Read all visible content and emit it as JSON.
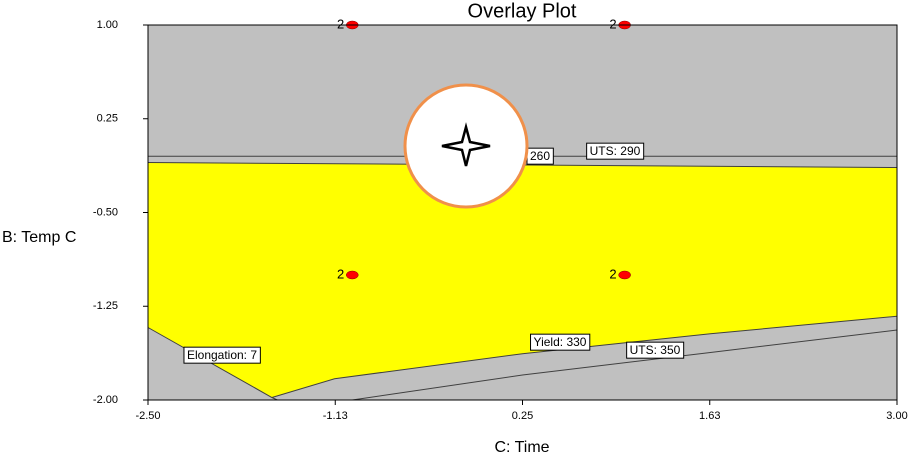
{
  "chart_data": {
    "type": "overlay",
    "title": "Overlay Plot",
    "x_label": "C: Time",
    "y_label": "B: Temp C",
    "xlim": [
      -2.5,
      3.0
    ],
    "ylim": [
      -2.0,
      1.0
    ],
    "xticks": [
      {
        "value": -2.5,
        "label": "-2.50"
      },
      {
        "value": -1.125,
        "label": "-1.13"
      },
      0.25,
      {
        "value": 1.625,
        "label": "1.63"
      },
      {
        "value": 3.0,
        "label": "3.00"
      }
    ],
    "yticks": [
      {
        "value": 1.0,
        "label": "1.00"
      },
      0.25,
      {
        "value": -0.5,
        "label": "-0.50"
      },
      -1.25,
      {
        "value": -2.0,
        "label": "-2.00"
      }
    ],
    "background_color": "#c0c0c0",
    "region": {
      "color": "#ffff00",
      "x": [
        -2.5,
        3.0,
        3.0,
        1.63,
        0.25,
        -1.13,
        -1.59,
        -2.5
      ],
      "y": [
        -0.1,
        -0.14,
        -1.33,
        -1.47,
        -1.63,
        -1.83,
        -1.98,
        -1.42
      ]
    },
    "series": [
      {
        "name": "UTS: 290",
        "color": "#404040",
        "x": [
          -2.5,
          3.0
        ],
        "y": [
          -0.05,
          -0.05
        ]
      },
      {
        "name": "260",
        "color": "#404040",
        "x": [
          -2.5,
          3.0
        ],
        "y": [
          -0.1,
          -0.14
        ]
      },
      {
        "name": "Yield: 330",
        "color": "#404040",
        "x": [
          -1.59,
          -1.13,
          0.25,
          1.63,
          3.0
        ],
        "y": [
          -1.98,
          -1.83,
          -1.63,
          -1.47,
          -1.33
        ]
      },
      {
        "name": "UTS: 350",
        "color": "#404040",
        "x": [
          -1.0,
          0.25,
          1.63,
          3.0
        ],
        "y": [
          -2.0,
          -1.8,
          -1.62,
          -1.44
        ]
      },
      {
        "name": "Elongation: 7",
        "color": "#404040",
        "x": [
          -2.5,
          -1.59,
          -1.55
        ],
        "y": [
          -1.42,
          -1.98,
          -2.0
        ]
      }
    ],
    "points": {
      "color": "#ff0000",
      "x": [
        -1.0,
        1.0,
        -1.0,
        1.0
      ],
      "y": [
        1.0,
        1.0,
        -1.0,
        -1.0
      ],
      "labels": [
        "2",
        "2",
        "2",
        "2"
      ]
    }
  }
}
